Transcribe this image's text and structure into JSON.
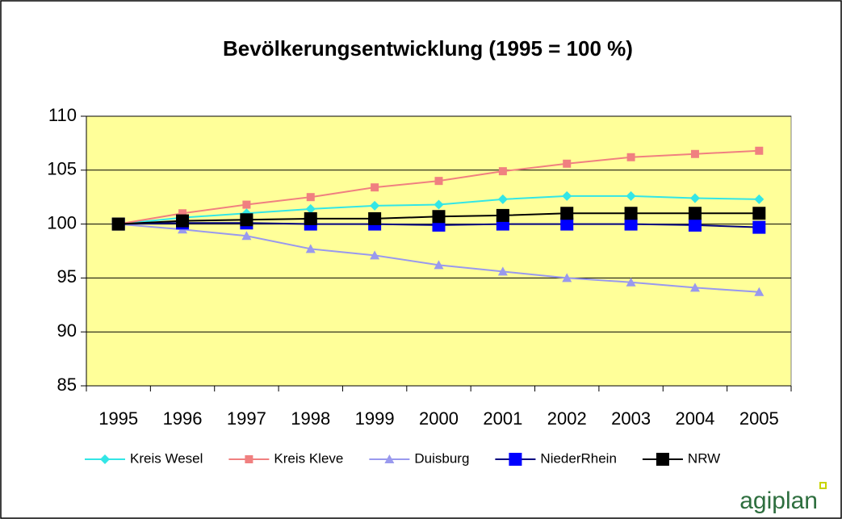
{
  "chart_data": {
    "type": "line",
    "title": "Bevölkerungsentwicklung (1995 = 100 %)",
    "categories": [
      "1995",
      "1996",
      "1997",
      "1998",
      "1999",
      "2000",
      "2001",
      "2002",
      "2003",
      "2004",
      "2005"
    ],
    "series": [
      {
        "name": "Kreis Wesel",
        "color": "#33e6e6",
        "marker": "diamond",
        "values": [
          100,
          100.6,
          101,
          101.4,
          101.7,
          101.8,
          102.3,
          102.6,
          102.6,
          102.4,
          102.3
        ]
      },
      {
        "name": "Kreis Kleve",
        "color": "#f08080",
        "marker": "square",
        "values": [
          100,
          101,
          101.8,
          102.5,
          103.4,
          104,
          104.9,
          105.6,
          106.2,
          106.5,
          106.8
        ]
      },
      {
        "name": "Duisburg",
        "color": "#9999ee",
        "marker": "triangle",
        "values": [
          100,
          99.5,
          98.9,
          97.7,
          97.1,
          96.2,
          95.6,
          95,
          94.6,
          94.1,
          93.7
        ]
      },
      {
        "name": "NiederRhein",
        "color": "#0000ff",
        "marker": "big-square",
        "values": [
          100,
          100.1,
          100.1,
          100,
          100,
          99.9,
          100,
          100,
          100,
          99.9,
          99.7
        ]
      },
      {
        "name": "NRW",
        "color": "#000000",
        "marker": "big-square",
        "values": [
          100,
          100.3,
          100.4,
          100.5,
          100.5,
          100.7,
          100.8,
          101,
          101,
          101,
          101
        ]
      }
    ],
    "ylim": [
      85,
      110
    ],
    "yticks": [
      85,
      90,
      95,
      100,
      105,
      110
    ],
    "grid": true,
    "plot_background": "#ffff99",
    "legend": "bottom",
    "logo": "agiplan"
  }
}
